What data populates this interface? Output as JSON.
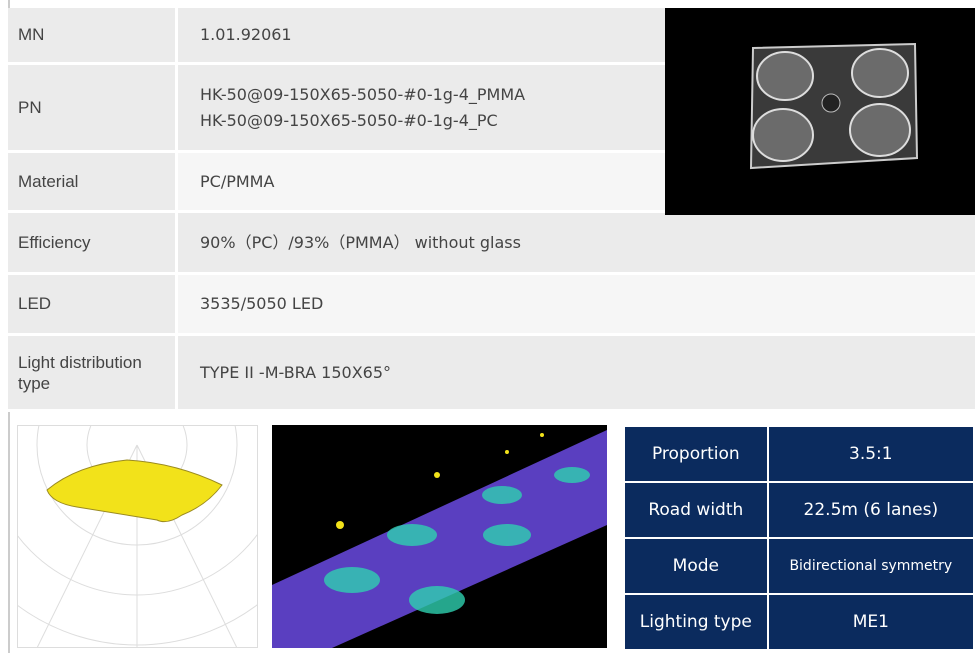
{
  "spec_table": {
    "rows": [
      {
        "label": "MN",
        "values": [
          "1.01.92061"
        ]
      },
      {
        "label": "PN",
        "values": [
          "HK-50@09-150X65-5050-#0-1g-4_PMMA",
          "HK-50@09-150X65-5050-#0-1g-4_PC"
        ]
      },
      {
        "label": "Material",
        "values": [
          "PC/PMMA"
        ]
      },
      {
        "label": "Efficiency",
        "values": [
          "90%（PC）/93%（PMMA） without glass"
        ]
      },
      {
        "label": "LED",
        "values": [
          "3535/5050 LED"
        ]
      },
      {
        "label": "Light distribution type",
        "values": [
          "TYPE II -M-BRA 150X65°"
        ]
      }
    ]
  },
  "road_table": {
    "rows": [
      [
        "Proportion",
        "3.5:1"
      ],
      [
        "Road width",
        "22.5m (6 lanes)"
      ],
      [
        "Mode",
        "Bidirectional symmetry"
      ],
      [
        "Lighting type",
        "ME1"
      ]
    ]
  }
}
